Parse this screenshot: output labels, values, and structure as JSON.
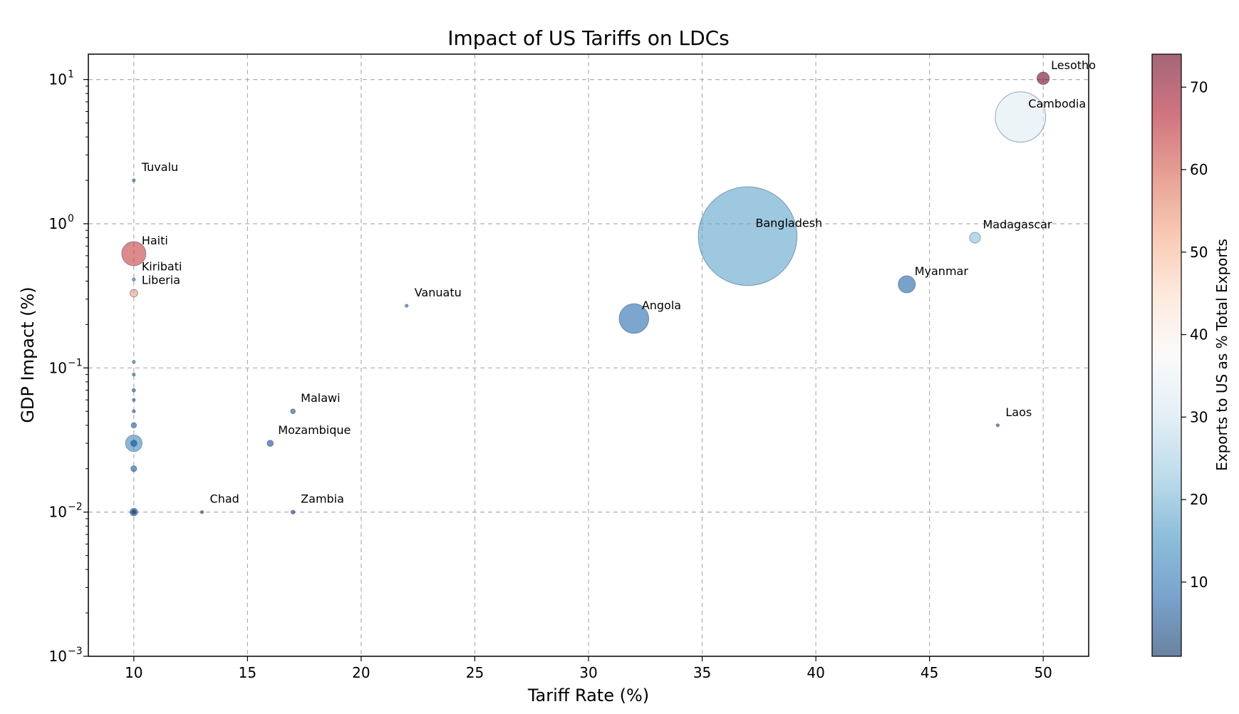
{
  "chart_data": {
    "type": "scatter",
    "title": "Impact of US Tariffs on LDCs",
    "xlabel": "Tariff Rate (%)",
    "ylabel": "GDP Impact (%)",
    "xlim": [
      8,
      52
    ],
    "ylim": [
      0.001,
      15
    ],
    "yscale": "log",
    "x_ticks": [
      10,
      15,
      20,
      25,
      30,
      35,
      40,
      45,
      50
    ],
    "y_ticks": [
      {
        "value": 0.001,
        "base": "10",
        "exp": "−3"
      },
      {
        "value": 0.01,
        "base": "10",
        "exp": "−2"
      },
      {
        "value": 0.1,
        "base": "10",
        "exp": "−1"
      },
      {
        "value": 1,
        "base": "10",
        "exp": "0"
      },
      {
        "value": 10,
        "base": "10",
        "exp": "1"
      }
    ],
    "grid": true,
    "colorbar": {
      "label": "Exports to US as % Total Exports",
      "range": [
        1,
        74
      ],
      "ticks": [
        10,
        20,
        30,
        40,
        50,
        60,
        70
      ],
      "colormap": "RdBu_r"
    },
    "points": [
      {
        "name": "Lesotho",
        "x": 50,
        "y": 10.2,
        "exports_pct": 73,
        "size": 8
      },
      {
        "name": "Cambodia",
        "x": 49,
        "y": 5.5,
        "exports_pct": 33,
        "size": 130
      },
      {
        "name": "Tuvalu",
        "x": 10,
        "y": 2.0,
        "exports_pct": 7,
        "size": 0.5
      },
      {
        "name": "Bangladesh",
        "x": 37,
        "y": 0.82,
        "exports_pct": 18,
        "size": 500
      },
      {
        "name": "Madagascar",
        "x": 47,
        "y": 0.8,
        "exports_pct": 22,
        "size": 6
      },
      {
        "name": "Haiti",
        "x": 10,
        "y": 0.62,
        "exports_pct": 63,
        "size": 30
      },
      {
        "name": "Kiribati",
        "x": 10,
        "y": 0.41,
        "exports_pct": 8,
        "size": 0.5
      },
      {
        "name": "Myanmar",
        "x": 44,
        "y": 0.38,
        "exports_pct": 8,
        "size": 15
      },
      {
        "name": "Liberia",
        "x": 10,
        "y": 0.33,
        "exports_pct": 53,
        "size": 3
      },
      {
        "name": "Vanuatu",
        "x": 22,
        "y": 0.27,
        "exports_pct": 8,
        "size": 0.5
      },
      {
        "name": "Angola",
        "x": 32,
        "y": 0.22,
        "exports_pct": 9,
        "size": 45
      },
      {
        "name": "Malawi",
        "x": 17,
        "y": 0.05,
        "exports_pct": 6,
        "size": 1.2
      },
      {
        "name": "Laos",
        "x": 48,
        "y": 0.04,
        "exports_pct": 4,
        "size": 0.5
      },
      {
        "name": "Mozambique",
        "x": 16,
        "y": 0.03,
        "exports_pct": 5,
        "size": 2
      },
      {
        "name": "Chad",
        "x": 13,
        "y": 0.01,
        "exports_pct": 4,
        "size": 0.4
      },
      {
        "name": "Zambia",
        "x": 17,
        "y": 0.01,
        "exports_pct": 4,
        "size": 0.8
      },
      {
        "name": "",
        "x": 10,
        "y": 0.11,
        "exports_pct": 12,
        "size": 0.4
      },
      {
        "name": "",
        "x": 10,
        "y": 0.09,
        "exports_pct": 6,
        "size": 0.4
      },
      {
        "name": "",
        "x": 10,
        "y": 0.07,
        "exports_pct": 4,
        "size": 0.6
      },
      {
        "name": "",
        "x": 10,
        "y": 0.06,
        "exports_pct": 7,
        "size": 0.4
      },
      {
        "name": "",
        "x": 10,
        "y": 0.05,
        "exports_pct": 5,
        "size": 0.5
      },
      {
        "name": "",
        "x": 10,
        "y": 0.04,
        "exports_pct": 8,
        "size": 1.5
      },
      {
        "name": "",
        "x": 10,
        "y": 0.03,
        "exports_pct": 14,
        "size": 14
      },
      {
        "name": "",
        "x": 10,
        "y": 0.03,
        "exports_pct": 5,
        "size": 2
      },
      {
        "name": "",
        "x": 10,
        "y": 0.02,
        "exports_pct": 6,
        "size": 1.8
      },
      {
        "name": "",
        "x": 10,
        "y": 0.01,
        "exports_pct": 5,
        "size": 3
      },
      {
        "name": "",
        "x": 10,
        "y": 0.01,
        "exports_pct": 3,
        "size": 1
      }
    ]
  }
}
